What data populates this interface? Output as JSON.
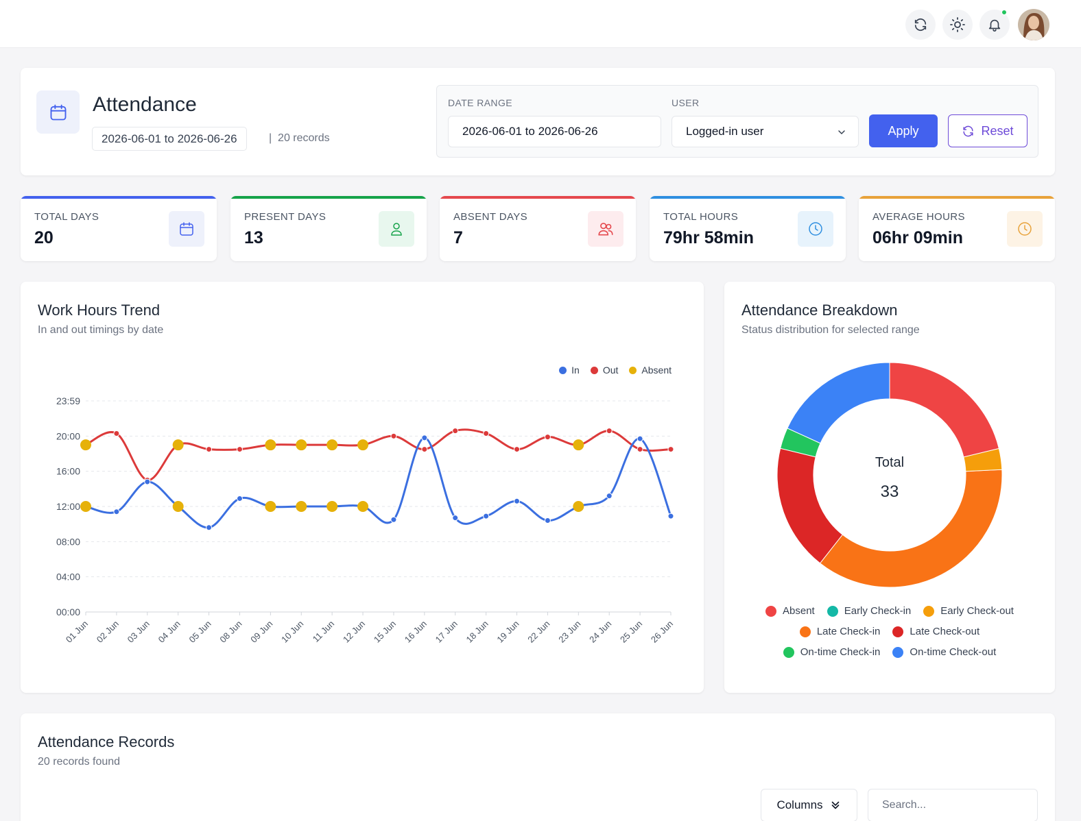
{
  "topbar": {
    "icons": [
      "refresh-icon",
      "sun-icon",
      "bell-icon"
    ],
    "notification_dot_color": "#22c55e"
  },
  "header": {
    "title": "Attendance",
    "range_chip": "2026-06-01 to 2026-06-26",
    "records_count": "20 records"
  },
  "filters": {
    "date_range_label": "DATE RANGE",
    "date_range_value": "2026-06-01 to 2026-06-26",
    "user_label": "USER",
    "user_value": "Logged-in user",
    "apply_label": "Apply",
    "reset_label": "Reset"
  },
  "stats": [
    {
      "label": "TOTAL DAYS",
      "value": "20",
      "color": "#4361ee",
      "bg": "#eef1fb",
      "icon": "calendar-icon"
    },
    {
      "label": "PRESENT DAYS",
      "value": "13",
      "color": "#16a34a",
      "bg": "#e8f7ee",
      "icon": "user-icon"
    },
    {
      "label": "ABSENT DAYS",
      "value": "7",
      "color": "#e5484d",
      "bg": "#fdecee",
      "icon": "users-icon"
    },
    {
      "label": "TOTAL HOURS",
      "value": "79hr 58min",
      "color": "#2f8fe0",
      "bg": "#e7f3fc",
      "icon": "clock-icon"
    },
    {
      "label": "AVERAGE HOURS",
      "value": "06hr 09min",
      "color": "#e8a23a",
      "bg": "#fdf3e5",
      "icon": "clock-icon"
    }
  ],
  "trend": {
    "title": "Work Hours Trend",
    "subtitle": "In and out timings by date"
  },
  "breakdown": {
    "title": "Attendance Breakdown",
    "subtitle": "Status distribution for selected range",
    "center_label": "Total",
    "center_value": "33"
  },
  "records": {
    "title": "Attendance Records",
    "subtitle": "20 records found",
    "columns_label": "Columns",
    "search_placeholder": "Search..."
  },
  "chart_data": [
    {
      "type": "line",
      "title": "Work Hours Trend",
      "x": [
        "01 Jun",
        "02 Jun",
        "03 Jun",
        "04 Jun",
        "05 Jun",
        "08 Jun",
        "09 Jun",
        "10 Jun",
        "11 Jun",
        "12 Jun",
        "15 Jun",
        "16 Jun",
        "17 Jun",
        "18 Jun",
        "19 Jun",
        "22 Jun",
        "23 Jun",
        "24 Jun",
        "25 Jun",
        "26 Jun"
      ],
      "y_ticks": [
        "00:00",
        "04:00",
        "08:00",
        "12:00",
        "16:00",
        "20:00",
        "23:59"
      ],
      "y_range": [
        0,
        24
      ],
      "grid": true,
      "legend": "top-right",
      "series": [
        {
          "name": "In",
          "color": "#3b6fe0",
          "values": [
            12.0,
            11.4,
            14.8,
            12.0,
            9.6,
            12.9,
            12.0,
            12.0,
            12.0,
            12.0,
            10.5,
            19.8,
            10.7,
            10.9,
            12.6,
            10.4,
            12.0,
            13.2,
            19.7,
            10.9
          ]
        },
        {
          "name": "Out",
          "color": "#dc3a3a",
          "values": [
            19.0,
            20.3,
            15.0,
            19.0,
            18.5,
            18.5,
            19.0,
            19.0,
            19.0,
            19.0,
            20.0,
            18.5,
            20.6,
            20.3,
            18.5,
            19.9,
            19.0,
            20.6,
            18.5,
            18.5
          ]
        },
        {
          "name": "Absent",
          "color": "#e6b10a",
          "indices": [
            0,
            3,
            6,
            7,
            8,
            9,
            16
          ]
        }
      ]
    },
    {
      "type": "pie",
      "title": "Attendance Breakdown",
      "total": 33,
      "slices": [
        {
          "name": "Absent",
          "value": 7,
          "color": "#ef4444"
        },
        {
          "name": "Early Check-in",
          "value": 0,
          "color": "#14b8a6"
        },
        {
          "name": "Early Check-out",
          "value": 1,
          "color": "#f59e0b"
        },
        {
          "name": "Late Check-in",
          "value": 12,
          "color": "#f97316"
        },
        {
          "name": "Late Check-out",
          "value": 6,
          "color": "#dc2626"
        },
        {
          "name": "On-time Check-in",
          "value": 1,
          "color": "#22c55e"
        },
        {
          "name": "On-time Check-out",
          "value": 6,
          "color": "#3b82f6"
        }
      ],
      "draw_order": [
        "Absent",
        "Early Check-out",
        "Late Check-in",
        "Late Check-out",
        "On-time Check-in",
        "On-time Check-out"
      ]
    }
  ]
}
